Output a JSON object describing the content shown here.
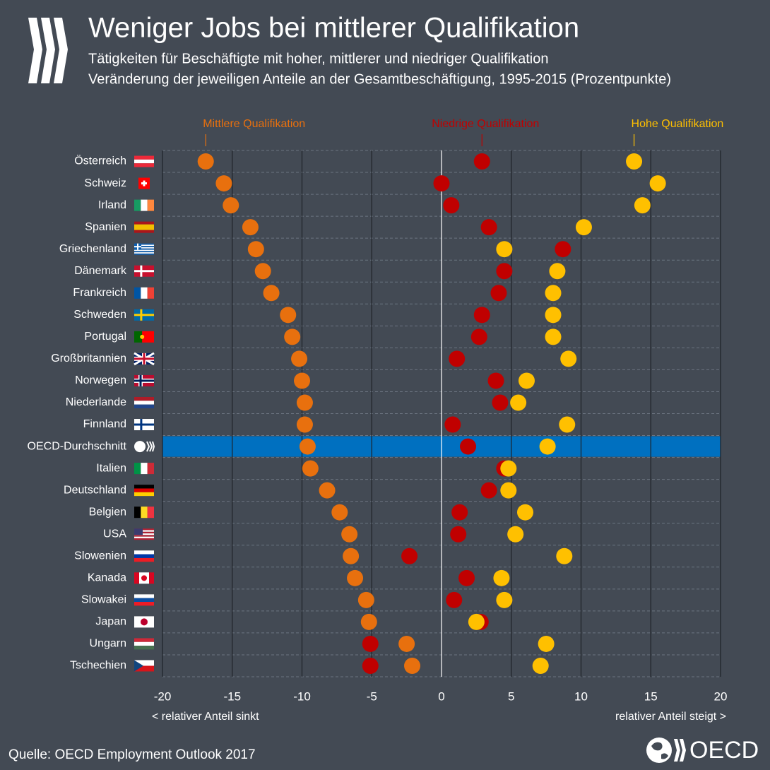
{
  "chart_data": {
    "type": "dot",
    "title": "Weniger Jobs bei mittlerer Qualifikation",
    "subtitle": [
      "Tätigkeiten für Beschäftigte mit hoher, mittlerer und niedriger Qualifikation",
      "Veränderung der jeweiligen Anteile an der Gesamtbeschäftigung, 1995-2015 (Prozentpunkte)"
    ],
    "categories": [
      "Österreich",
      "Schweiz",
      "Irland",
      "Spanien",
      "Griechenland",
      "Dänemark",
      "Frankreich",
      "Schweden",
      "Portugal",
      "Großbritannien",
      "Norwegen",
      "Niederlande",
      "Finnland",
      "OECD-Durchschnitt",
      "Italien",
      "Deutschland",
      "Belgien",
      "USA",
      "Slowenien",
      "Kanada",
      "Slowakei",
      "Japan",
      "Ungarn",
      "Tschechien"
    ],
    "highlight_category": "OECD-Durchschnitt",
    "series": [
      {
        "name": "Mittlere Qualifikation",
        "color": "#e8700e",
        "values": [
          -16.9,
          -15.6,
          -15.1,
          -13.7,
          -13.3,
          -12.8,
          -12.2,
          -11.0,
          -10.7,
          -10.2,
          -10.0,
          -9.8,
          -9.8,
          -9.6,
          -9.4,
          -8.2,
          -7.3,
          -6.6,
          -6.5,
          -6.2,
          -5.4,
          -5.2,
          -2.5,
          -2.1
        ]
      },
      {
        "name": "Niedrige Qualifikation",
        "color": "#c00000",
        "values": [
          2.9,
          0.0,
          0.7,
          3.4,
          8.7,
          4.5,
          4.1,
          2.9,
          2.7,
          1.1,
          3.9,
          4.2,
          0.8,
          1.9,
          4.5,
          3.4,
          1.3,
          1.2,
          -2.3,
          1.8,
          0.9,
          2.8,
          -5.1,
          -5.1
        ]
      },
      {
        "name": "Hohe Qualifikation",
        "color": "#ffc000",
        "values": [
          13.8,
          15.5,
          14.4,
          10.2,
          4.5,
          8.3,
          8.0,
          8.0,
          8.0,
          9.1,
          6.1,
          5.5,
          9.0,
          7.6,
          4.8,
          4.8,
          6.0,
          5.3,
          8.8,
          4.3,
          4.5,
          2.5,
          7.5,
          7.1
        ]
      }
    ],
    "xlim": [
      -20,
      20
    ],
    "xticks": [
      -20,
      -15,
      -10,
      -5,
      0,
      5,
      10,
      15,
      20
    ],
    "x_annotation_left": "< relativer Anteil sinkt",
    "x_annotation_right": "relativer Anteil steigt >",
    "source": "Quelle: OECD Employment Outlook 2017",
    "logo_text": "OECD"
  }
}
